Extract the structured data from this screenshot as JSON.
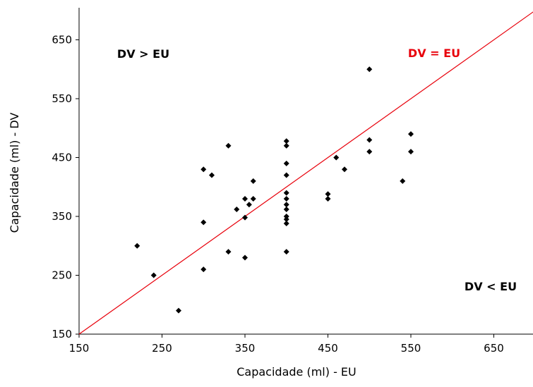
{
  "chart_data": {
    "type": "scatter",
    "xlabel": "Capacidade (ml) - EU",
    "ylabel": "Capacidade (ml) - DV",
    "xlim": [
      150,
      700
    ],
    "ylim": [
      150,
      700
    ],
    "x_ticks": [
      150,
      250,
      350,
      450,
      550,
      650
    ],
    "y_ticks": [
      150,
      250,
      350,
      450,
      550,
      650
    ],
    "grid": false,
    "points": [
      {
        "x": 220,
        "y": 300
      },
      {
        "x": 240,
        "y": 250
      },
      {
        "x": 270,
        "y": 190
      },
      {
        "x": 300,
        "y": 430
      },
      {
        "x": 300,
        "y": 340
      },
      {
        "x": 300,
        "y": 260
      },
      {
        "x": 310,
        "y": 420
      },
      {
        "x": 330,
        "y": 470
      },
      {
        "x": 330,
        "y": 290
      },
      {
        "x": 340,
        "y": 362
      },
      {
        "x": 350,
        "y": 380
      },
      {
        "x": 350,
        "y": 348
      },
      {
        "x": 350,
        "y": 280
      },
      {
        "x": 355,
        "y": 370
      },
      {
        "x": 360,
        "y": 410
      },
      {
        "x": 360,
        "y": 380
      },
      {
        "x": 400,
        "y": 478
      },
      {
        "x": 400,
        "y": 470
      },
      {
        "x": 400,
        "y": 440
      },
      {
        "x": 400,
        "y": 420
      },
      {
        "x": 400,
        "y": 390
      },
      {
        "x": 400,
        "y": 380
      },
      {
        "x": 400,
        "y": 370
      },
      {
        "x": 400,
        "y": 362
      },
      {
        "x": 400,
        "y": 350
      },
      {
        "x": 400,
        "y": 345
      },
      {
        "x": 400,
        "y": 338
      },
      {
        "x": 400,
        "y": 290
      },
      {
        "x": 450,
        "y": 388
      },
      {
        "x": 450,
        "y": 380
      },
      {
        "x": 460,
        "y": 450
      },
      {
        "x": 470,
        "y": 430
      },
      {
        "x": 500,
        "y": 600
      },
      {
        "x": 500,
        "y": 480
      },
      {
        "x": 500,
        "y": 460
      },
      {
        "x": 540,
        "y": 410
      },
      {
        "x": 550,
        "y": 490
      },
      {
        "x": 550,
        "y": 460
      }
    ],
    "reference_line": {
      "label": "DV = EU",
      "from": [
        150,
        150
      ],
      "to": [
        700,
        700
      ],
      "color": "#e8000b"
    },
    "annotations": [
      {
        "text": "DV > EU",
        "region": "upper-left"
      },
      {
        "text": "DV < EU",
        "region": "lower-right"
      }
    ]
  }
}
